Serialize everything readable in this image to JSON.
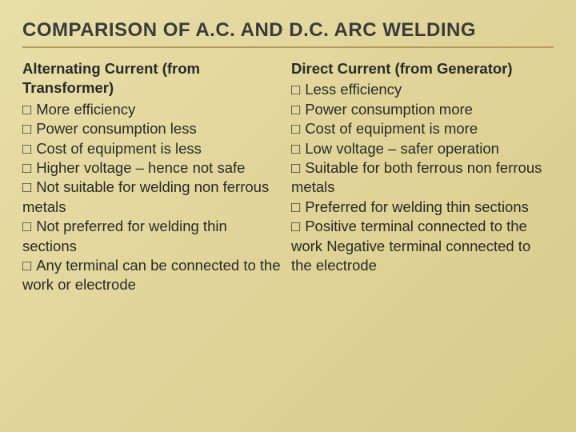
{
  "title": "COMPARISON OF A.C. AND D.C. ARC WELDING",
  "bullet": "□",
  "left": {
    "heading": "Alternating Current (from Transformer)",
    "items": [
      "More efficiency",
      "Power consumption less",
      "Cost of equipment is less",
      "Higher voltage – hence not safe",
      "Not suitable for welding non ferrous metals",
      "Not preferred for welding thin sections",
      "Any terminal can be connected to the work or electrode"
    ]
  },
  "right": {
    "heading": "Direct Current (from Generator)",
    "items": [
      "Less efficiency",
      "Power consumption more",
      "Cost of equipment is more",
      "Low voltage – safer operation",
      "Suitable for both ferrous non ferrous metals",
      "Preferred for welding thin sections",
      "Positive terminal connected to the work  Negative terminal connected to the electrode"
    ]
  },
  "colors": {
    "title_color": "#3a3a3a",
    "text_color": "#2a2a2a",
    "underline_color": "#b89a5a",
    "bg_gradient_start": "#e8dfa8",
    "bg_gradient_mid": "#e0d498",
    "bg_gradient_end": "#d8cc8a"
  },
  "typography": {
    "title_fontsize": 24,
    "body_fontsize": 18.5,
    "title_weight": "bold",
    "subhead_weight": "bold"
  }
}
